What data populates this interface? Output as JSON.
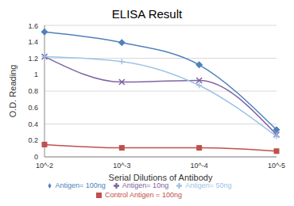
{
  "chart_data": {
    "type": "line",
    "title": "ELISA Result",
    "x_label": "Serial Dilutions  of Antibody",
    "y_label": "O.D. Reading",
    "categories": [
      "10^-2",
      "10^-3",
      "10^-4",
      "10^-5"
    ],
    "series": [
      {
        "name": "Control Antigen = 100ng",
        "color": "#c0504d",
        "marker": "square",
        "values": [
          0.15,
          0.11,
          0.11,
          0.07
        ]
      },
      {
        "name": "Antigen= 10ng",
        "color": "#8064a2",
        "marker": "x",
        "values": [
          1.22,
          0.91,
          0.93,
          0.27
        ]
      },
      {
        "name": "Antigen= 50ng",
        "color": "#9dc3e6",
        "marker": "plus",
        "values": [
          1.22,
          1.16,
          0.87,
          0.25
        ]
      },
      {
        "name": "Antigen= 100ng",
        "color": "#4f81bd",
        "marker": "diamond",
        "values": [
          1.52,
          1.39,
          1.12,
          0.33
        ]
      }
    ],
    "ylim": [
      0,
      1.6
    ],
    "yticks": [
      0,
      0.2,
      0.4,
      0.6,
      0.8,
      1,
      1.2,
      1.4,
      1.6
    ],
    "grid": true,
    "legend": "bottom"
  }
}
